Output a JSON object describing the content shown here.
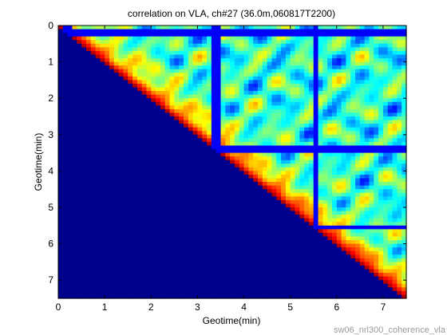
{
  "chart_data": {
    "type": "heatmap",
    "title": "correlation on VLA, ch#27 (36.0m,060817T2200)",
    "xlabel": "Geotime(min)",
    "ylabel": "Geotime(min)",
    "xlim": [
      0,
      7.5
    ],
    "ylim": [
      0,
      7.5
    ],
    "y_axis_direction": "reversed",
    "x_ticks": [
      "0",
      "1",
      "2",
      "3",
      "4",
      "5",
      "6",
      "7"
    ],
    "y_ticks": [
      "0",
      "1",
      "2",
      "3",
      "4",
      "5",
      "6",
      "7"
    ],
    "colormap": "jet",
    "value_range": [
      0,
      1
    ],
    "lower_triangle_value": 0,
    "matrix_size": 75,
    "diagonal_value": 0.95,
    "correlation_decay_minutes": 0.5,
    "background_correlation_mean": 0.42,
    "background_correlation_amplitude": 0.3,
    "block_boundaries_min": [
      0.2,
      3.4,
      5.55
    ],
    "block_boundary_value": 0.12,
    "block_boundary_end_min": 7.5,
    "footer": "sw06_nrl300_coherence_vla"
  },
  "colors": {
    "lower_triangle": "#00008f",
    "background": "#ffffff",
    "axis": "#000000",
    "footer": "#9a9a9a"
  }
}
